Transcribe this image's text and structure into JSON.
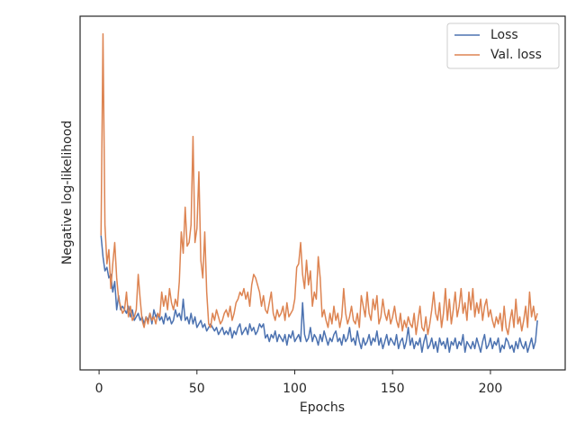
{
  "chart_data": {
    "type": "line",
    "xlabel": "Epochs",
    "ylabel": "Negative log-likelihood",
    "xlim": [
      -9.7,
      238.2
    ],
    "xticks": [
      0,
      50,
      100,
      150,
      200
    ],
    "ylim": [
      0,
      10
    ],
    "legend": "upper right",
    "x": [
      1,
      2,
      3,
      4,
      5,
      6,
      7,
      8,
      9,
      10,
      11,
      12,
      13,
      14,
      15,
      16,
      17,
      18,
      19,
      20,
      21,
      22,
      23,
      24,
      25,
      26,
      27,
      28,
      29,
      30,
      31,
      32,
      33,
      34,
      35,
      36,
      37,
      38,
      39,
      40,
      41,
      42,
      43,
      44,
      45,
      46,
      47,
      48,
      49,
      50,
      51,
      52,
      53,
      54,
      55,
      56,
      57,
      58,
      59,
      60,
      61,
      62,
      63,
      64,
      65,
      66,
      67,
      68,
      69,
      70,
      71,
      72,
      73,
      74,
      75,
      76,
      77,
      78,
      79,
      80,
      81,
      82,
      83,
      84,
      85,
      86,
      87,
      88,
      89,
      90,
      91,
      92,
      93,
      94,
      95,
      96,
      97,
      98,
      99,
      100,
      101,
      102,
      103,
      104,
      105,
      106,
      107,
      108,
      109,
      110,
      111,
      112,
      113,
      114,
      115,
      116,
      117,
      118,
      119,
      120,
      121,
      122,
      123,
      124,
      125,
      126,
      127,
      128,
      129,
      130,
      131,
      132,
      133,
      134,
      135,
      136,
      137,
      138,
      139,
      140,
      141,
      142,
      143,
      144,
      145,
      146,
      147,
      148,
      149,
      150,
      151,
      152,
      153,
      154,
      155,
      156,
      157,
      158,
      159,
      160,
      161,
      162,
      163,
      164,
      165,
      166,
      167,
      168,
      169,
      170,
      171,
      172,
      173,
      174,
      175,
      176,
      177,
      178,
      179,
      180,
      181,
      182,
      183,
      184,
      185,
      186,
      187,
      188,
      189,
      190,
      191,
      192,
      193,
      194,
      195,
      196,
      197,
      198,
      199,
      200,
      201,
      202,
      203,
      204,
      205,
      206,
      207,
      208,
      209,
      210,
      211,
      212,
      213,
      214,
      215,
      216,
      217,
      218,
      219,
      220,
      221,
      222,
      223,
      224
    ],
    "series": [
      {
        "name": "Loss",
        "color": "#4c72b0",
        "values": [
          3.8,
          3.2,
          2.8,
          2.9,
          2.6,
          2.7,
          2.2,
          2.5,
          1.7,
          2.1,
          1.7,
          1.8,
          1.7,
          1.6,
          1.8,
          1.5,
          1.7,
          1.4,
          1.5,
          1.6,
          1.4,
          1.5,
          1.3,
          1.5,
          1.4,
          1.6,
          1.3,
          1.7,
          1.5,
          1.6,
          1.4,
          1.5,
          1.3,
          1.6,
          1.4,
          1.5,
          1.3,
          1.4,
          1.7,
          1.5,
          1.6,
          1.4,
          2.0,
          1.4,
          1.5,
          1.3,
          1.6,
          1.3,
          1.5,
          1.2,
          1.3,
          1.4,
          1.2,
          1.3,
          1.1,
          1.2,
          1.3,
          1.2,
          1.1,
          1.2,
          1.0,
          1.1,
          1.2,
          1.0,
          1.1,
          1.0,
          1.2,
          0.9,
          1.1,
          1.0,
          1.2,
          1.3,
          1.0,
          1.1,
          1.2,
          1.0,
          1.3,
          1.1,
          1.2,
          1.0,
          1.1,
          1.3,
          1.2,
          1.3,
          0.9,
          1.0,
          0.8,
          1.0,
          0.9,
          1.1,
          0.8,
          1.0,
          0.9,
          0.8,
          1.0,
          0.7,
          1.0,
          0.9,
          1.1,
          0.8,
          0.9,
          1.0,
          0.8,
          1.9,
          1.0,
          0.8,
          0.9,
          1.2,
          0.8,
          1.0,
          0.9,
          0.7,
          1.0,
          0.8,
          1.1,
          0.9,
          0.7,
          0.9,
          0.8,
          1.0,
          1.1,
          0.8,
          0.9,
          0.7,
          1.0,
          0.8,
          0.9,
          1.2,
          0.8,
          0.9,
          0.7,
          1.1,
          0.8,
          0.6,
          0.9,
          0.7,
          0.8,
          1.0,
          0.7,
          0.9,
          0.8,
          1.1,
          0.7,
          0.9,
          0.6,
          0.8,
          1.0,
          0.7,
          0.9,
          0.8,
          0.7,
          1.0,
          0.6,
          0.8,
          0.9,
          0.6,
          0.8,
          1.2,
          0.7,
          0.9,
          0.6,
          0.8,
          0.7,
          0.9,
          0.5,
          0.8,
          1.0,
          0.6,
          0.7,
          0.9,
          0.6,
          0.8,
          0.5,
          0.9,
          0.7,
          0.8,
          0.6,
          0.9,
          0.5,
          0.8,
          0.7,
          0.9,
          0.6,
          0.8,
          0.7,
          1.0,
          0.5,
          0.8,
          0.7,
          0.6,
          0.8,
          0.6,
          0.9,
          0.7,
          0.5,
          0.8,
          1.0,
          0.6,
          0.7,
          0.9,
          0.6,
          0.8,
          0.7,
          0.9,
          0.5,
          0.7,
          0.6,
          0.9,
          0.8,
          0.6,
          0.7,
          0.5,
          0.8,
          0.6,
          0.9,
          0.7,
          0.6,
          0.8,
          0.5,
          0.7,
          0.9,
          0.6,
          0.8,
          1.4
        ]
      },
      {
        "name": "Val. loss",
        "color": "#dd8452",
        "values": [
          3.8,
          9.5,
          4.1,
          3.0,
          3.4,
          2.3,
          3.0,
          3.6,
          2.6,
          2.0,
          1.8,
          1.6,
          1.7,
          2.2,
          1.5,
          1.8,
          1.4,
          1.5,
          1.7,
          2.7,
          2.0,
          1.4,
          1.2,
          1.5,
          1.3,
          1.6,
          1.4,
          1.5,
          1.3,
          1.6,
          1.5,
          2.2,
          1.8,
          2.1,
          1.7,
          2.3,
          1.9,
          1.7,
          2.0,
          1.8,
          2.5,
          3.9,
          3.3,
          4.6,
          3.5,
          3.6,
          4.1,
          6.6,
          3.6,
          4.0,
          5.6,
          3.1,
          2.6,
          3.9,
          2.2,
          1.3,
          1.2,
          1.6,
          1.4,
          1.7,
          1.5,
          1.3,
          1.4,
          1.6,
          1.7,
          1.5,
          1.8,
          1.4,
          1.6,
          1.9,
          2.0,
          2.2,
          2.1,
          2.3,
          2.0,
          2.2,
          1.8,
          2.4,
          2.7,
          2.6,
          2.4,
          2.2,
          1.8,
          2.1,
          1.7,
          1.6,
          1.9,
          2.2,
          1.6,
          1.4,
          1.7,
          1.5,
          1.6,
          1.8,
          1.4,
          1.9,
          1.5,
          1.6,
          1.7,
          2.0,
          2.9,
          3.0,
          3.6,
          2.7,
          2.3,
          3.1,
          2.4,
          2.8,
          1.8,
          2.2,
          2.0,
          3.2,
          2.6,
          1.5,
          1.7,
          1.4,
          1.2,
          1.6,
          1.3,
          1.8,
          1.4,
          1.6,
          1.2,
          1.5,
          2.3,
          1.6,
          1.3,
          1.5,
          1.8,
          1.4,
          1.3,
          1.6,
          1.2,
          2.1,
          1.8,
          1.5,
          2.2,
          1.6,
          1.4,
          2.0,
          1.7,
          2.1,
          1.3,
          1.5,
          2.0,
          1.6,
          1.4,
          1.7,
          1.3,
          1.5,
          1.8,
          1.4,
          1.2,
          1.6,
          1.1,
          1.4,
          1.2,
          1.5,
          1.3,
          1.2,
          1.6,
          1.0,
          1.4,
          1.8,
          1.2,
          1.1,
          1.5,
          1.0,
          1.3,
          1.7,
          2.2,
          1.6,
          1.4,
          1.9,
          1.2,
          1.6,
          2.3,
          1.4,
          2.0,
          1.3,
          1.7,
          2.2,
          1.5,
          1.8,
          2.3,
          1.6,
          1.9,
          1.4,
          2.2,
          1.7,
          2.3,
          1.5,
          1.9,
          1.6,
          2.0,
          1.4,
          1.8,
          2.0,
          1.5,
          1.7,
          1.4,
          1.2,
          1.5,
          1.3,
          1.6,
          1.1,
          1.8,
          1.2,
          1.0,
          1.4,
          1.7,
          1.2,
          2.0,
          1.3,
          1.5,
          1.1,
          1.4,
          1.8,
          1.2,
          2.2,
          1.5,
          1.8,
          1.4,
          1.6
        ]
      }
    ]
  }
}
